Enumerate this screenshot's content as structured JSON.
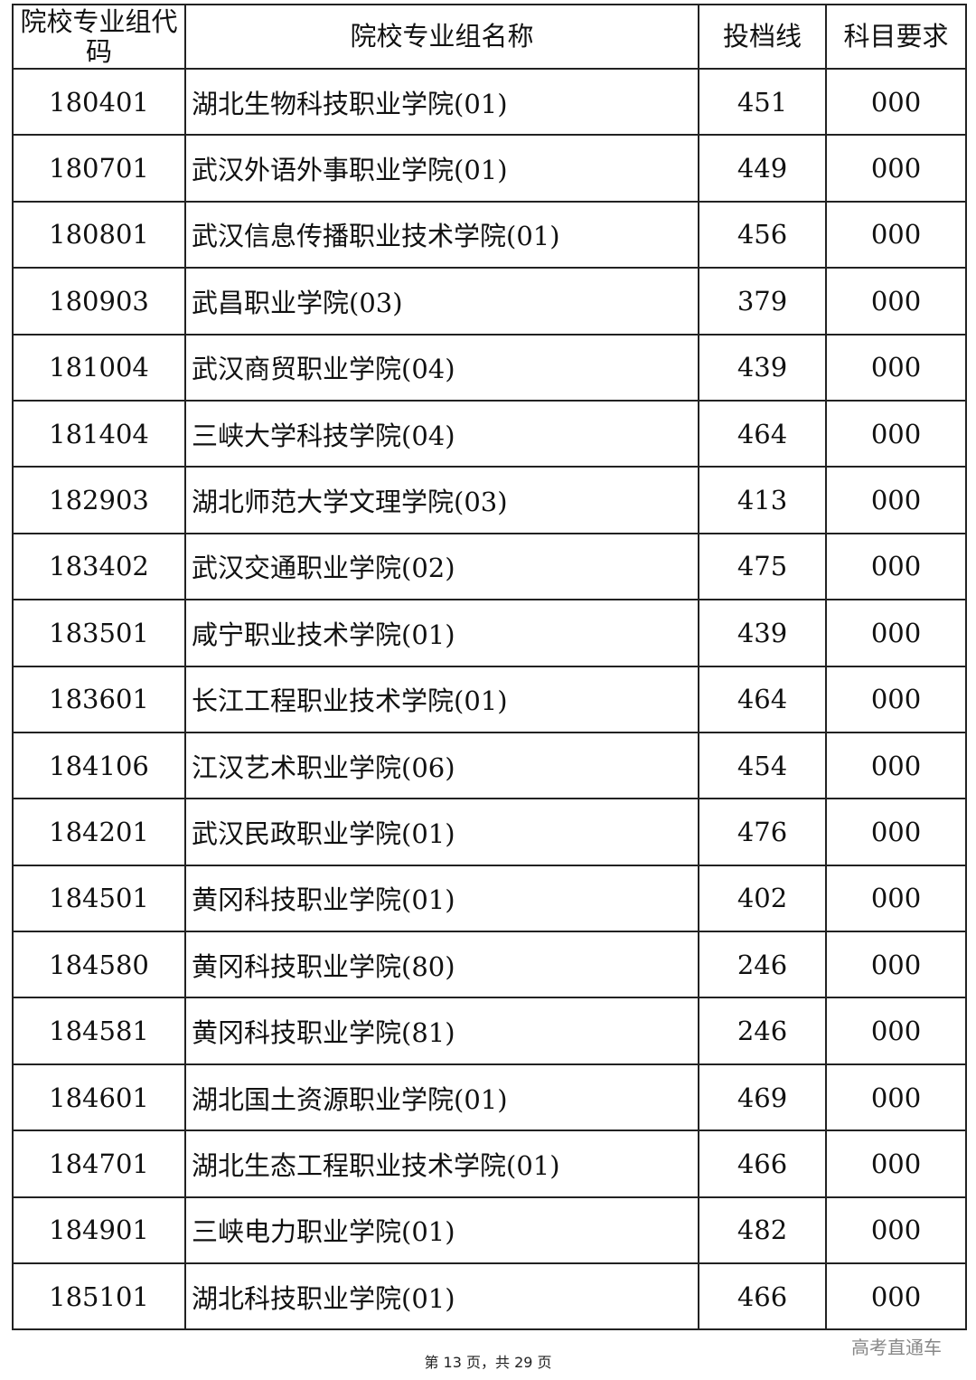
{
  "table": {
    "headers": [
      "院校专业组代码",
      "院校专业组名称",
      "投档线",
      "科目要求"
    ],
    "rows": [
      [
        "180401",
        "湖北生物科技职业学院(01)",
        "451",
        "000"
      ],
      [
        "180701",
        "武汉外语外事职业学院(01)",
        "449",
        "000"
      ],
      [
        "180801",
        "武汉信息传播职业技术学院(01)",
        "456",
        "000"
      ],
      [
        "180903",
        "武昌职业学院(03)",
        "379",
        "000"
      ],
      [
        "181004",
        "武汉商贸职业学院(04)",
        "439",
        "000"
      ],
      [
        "181404",
        "三峡大学科技学院(04)",
        "464",
        "000"
      ],
      [
        "182903",
        "湖北师范大学文理学院(03)",
        "413",
        "000"
      ],
      [
        "183402",
        "武汉交通职业学院(02)",
        "475",
        "000"
      ],
      [
        "183501",
        "咸宁职业技术学院(01)",
        "439",
        "000"
      ],
      [
        "183601",
        "长江工程职业技术学院(01)",
        "464",
        "000"
      ],
      [
        "184106",
        "江汉艺术职业学院(06)",
        "454",
        "000"
      ],
      [
        "184201",
        "武汉民政职业学院(01)",
        "476",
        "000"
      ],
      [
        "184501",
        "黄冈科技职业学院(01)",
        "402",
        "000"
      ],
      [
        "184580",
        "黄冈科技职业学院(80)",
        "246",
        "000"
      ],
      [
        "184581",
        "黄冈科技职业学院(81)",
        "246",
        "000"
      ],
      [
        "184601",
        "湖北国土资源职业学院(01)",
        "469",
        "000"
      ],
      [
        "184701",
        "湖北生态工程职业技术学院(01)",
        "466",
        "000"
      ],
      [
        "184901",
        "三峡电力职业学院(01)",
        "482",
        "000"
      ],
      [
        "185101",
        "湖北科技职业学院(01)",
        "466",
        "000"
      ]
    ]
  },
  "watermark": "高考直通车",
  "footer": "第 13 页，共 29 页"
}
